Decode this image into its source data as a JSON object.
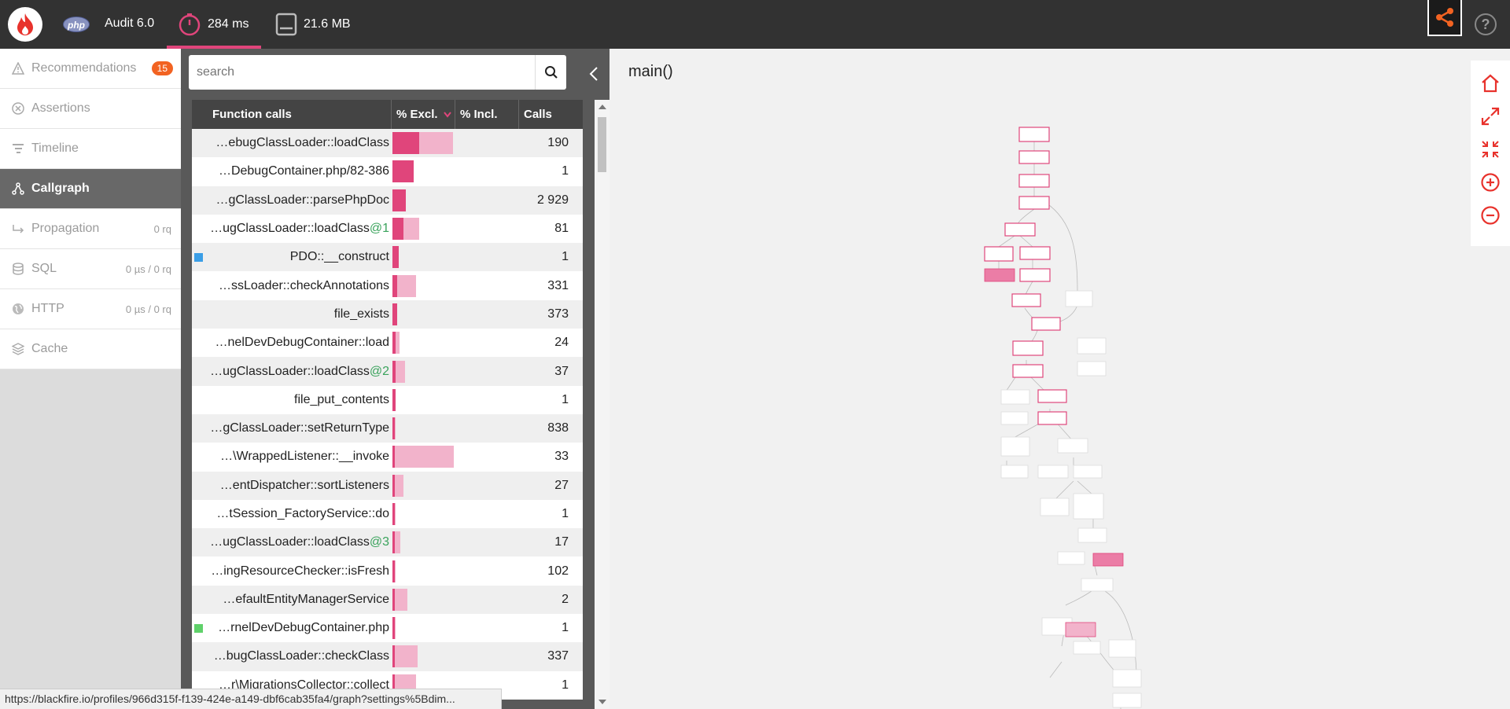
{
  "topbar": {
    "audit_label": "Audit 6.0",
    "php_badge": "php",
    "wall_time": "284 ms",
    "memory": "21.6 MB",
    "help_label": "?"
  },
  "sidebar": {
    "items": [
      {
        "label": "Recommendations",
        "badge": "15",
        "icon": "warning-icon",
        "right": ""
      },
      {
        "label": "Assertions",
        "badge": "",
        "icon": "x-circle-icon",
        "right": ""
      },
      {
        "label": "Timeline",
        "badge": "",
        "icon": "timeline-icon",
        "right": ""
      },
      {
        "label": "Callgraph",
        "badge": "",
        "icon": "callgraph-icon",
        "right": "",
        "active": true
      },
      {
        "label": "Propagation",
        "badge": "",
        "icon": "propagation-icon",
        "right": "0 rq"
      },
      {
        "label": "SQL",
        "badge": "",
        "icon": "database-icon",
        "right": "0 µs / 0 rq"
      },
      {
        "label": "HTTP",
        "badge": "",
        "icon": "globe-icon",
        "right": "0 µs / 0 rq"
      },
      {
        "label": "Cache",
        "badge": "",
        "icon": "layers-icon",
        "right": ""
      }
    ]
  },
  "search": {
    "placeholder": "search"
  },
  "table": {
    "headers": {
      "function": "Function calls",
      "excl": "% Excl.",
      "incl": "% Incl.",
      "calls": "Calls"
    },
    "rows": [
      {
        "name": "…ebugClassLoader::loadClass",
        "suffix": "",
        "excl_pct": 4.2,
        "incl_pct": 9.6,
        "calls": "190",
        "marker": ""
      },
      {
        "name": "…DebugContainer.php/82-386",
        "suffix": "",
        "excl_pct": 3.4,
        "incl_pct": 3.4,
        "calls": "1",
        "marker": ""
      },
      {
        "name": "…gClassLoader::parsePhpDoc",
        "suffix": "",
        "excl_pct": 2.1,
        "incl_pct": 2.1,
        "calls": "2 929",
        "marker": ""
      },
      {
        "name": "…ugClassLoader::loadClass",
        "suffix": "@1",
        "excl_pct": 1.8,
        "incl_pct": 4.3,
        "calls": "81",
        "marker": ""
      },
      {
        "name": "PDO::__construct",
        "suffix": "",
        "excl_pct": 1.0,
        "incl_pct": 1.0,
        "calls": "1",
        "marker": "#3a9ee6"
      },
      {
        "name": "…ssLoader::checkAnnotations",
        "suffix": "",
        "excl_pct": 0.8,
        "incl_pct": 3.7,
        "calls": "331",
        "marker": ""
      },
      {
        "name": "file_exists",
        "suffix": "",
        "excl_pct": 0.8,
        "incl_pct": 0.8,
        "calls": "373",
        "marker": ""
      },
      {
        "name": "…nelDevDebugContainer::load",
        "suffix": "",
        "excl_pct": 0.5,
        "incl_pct": 1.1,
        "calls": "24",
        "marker": ""
      },
      {
        "name": "…ugClassLoader::loadClass",
        "suffix": "@2",
        "excl_pct": 0.5,
        "incl_pct": 2.0,
        "calls": "37",
        "marker": ""
      },
      {
        "name": "file_put_contents",
        "suffix": "",
        "excl_pct": 0.5,
        "incl_pct": 0.5,
        "calls": "1",
        "marker": ""
      },
      {
        "name": "…gClassLoader::setReturnType",
        "suffix": "",
        "excl_pct": 0.4,
        "incl_pct": 0.4,
        "calls": "838",
        "marker": ""
      },
      {
        "name": "…\\WrappedListener::__invoke",
        "suffix": "",
        "excl_pct": 0.4,
        "incl_pct": 9.7,
        "calls": "33",
        "marker": ""
      },
      {
        "name": "…entDispatcher::sortListeners",
        "suffix": "",
        "excl_pct": 0.4,
        "incl_pct": 1.7,
        "calls": "27",
        "marker": ""
      },
      {
        "name": "…tSession_FactoryService::do",
        "suffix": "",
        "excl_pct": 0.4,
        "incl_pct": 0.4,
        "calls": "1",
        "marker": ""
      },
      {
        "name": "…ugClassLoader::loadClass",
        "suffix": "@3",
        "excl_pct": 0.4,
        "incl_pct": 1.3,
        "calls": "17",
        "marker": ""
      },
      {
        "name": "…ingResourceChecker::isFresh",
        "suffix": "",
        "excl_pct": 0.4,
        "incl_pct": 0.5,
        "calls": "102",
        "marker": ""
      },
      {
        "name": "…efaultEntityManagerService",
        "suffix": "",
        "excl_pct": 0.3,
        "incl_pct": 2.4,
        "calls": "2",
        "marker": ""
      },
      {
        "name": "…rnelDevDebugContainer.php",
        "suffix": "",
        "excl_pct": 0.3,
        "incl_pct": 0.3,
        "calls": "1",
        "marker": "#5fd16a"
      },
      {
        "name": "…bugClassLoader::checkClass",
        "suffix": "",
        "excl_pct": 0.3,
        "incl_pct": 4.0,
        "calls": "337",
        "marker": ""
      },
      {
        "name": "…r\\MigrationsCollector::collect",
        "suffix": "",
        "excl_pct": 0.3,
        "incl_pct": 3.8,
        "calls": "1",
        "marker": ""
      }
    ]
  },
  "graph": {
    "title": "main()"
  },
  "status_url": "https://blackfire.io/profiles/966d315f-f139-424e-a149-dbf6cab35fa4/graph?settings%5Bdim...",
  "colors": {
    "accent": "#e0457b",
    "accent_light": "#f2b3cb",
    "badge": "#f26322",
    "topbar": "#323232"
  }
}
